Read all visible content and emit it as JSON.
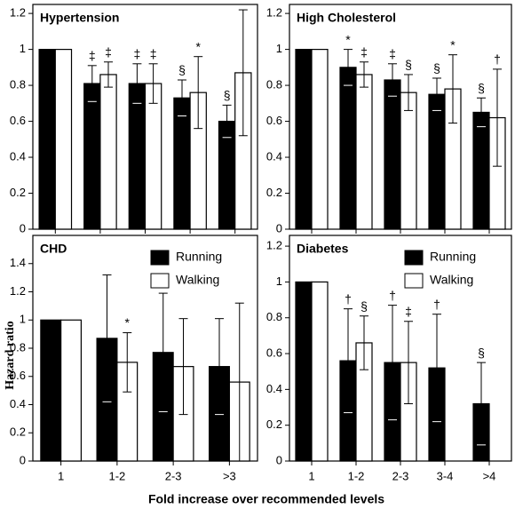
{
  "ylabel": "Hazard ratio",
  "xlabel": "Fold increase over recommended levels",
  "chart_data": [
    {
      "type": "bar",
      "title": "Hypertension",
      "categories": [
        null,
        null,
        null,
        null,
        null
      ],
      "ylim": [
        0,
        1.25
      ],
      "yticks": [
        0,
        0.2,
        0.4,
        0.6,
        0.8,
        1,
        1.2
      ],
      "series": [
        {
          "name": null,
          "color": "#000000",
          "values": [
            1,
            0.81,
            0.81,
            0.73,
            0.6
          ],
          "errors": [
            null,
            0.1,
            0.11,
            0.1,
            0.09
          ],
          "annotations": [
            null,
            "‡",
            "‡",
            "§",
            "§"
          ]
        },
        {
          "name": null,
          "color": "#ffffff",
          "values": [
            1,
            0.86,
            0.81,
            0.76,
            0.87
          ],
          "errors": [
            null,
            0.07,
            0.11,
            0.2,
            0.35
          ],
          "annotations": [
            null,
            "‡",
            "‡",
            "*",
            null
          ]
        }
      ]
    },
    {
      "type": "bar",
      "title": "High Cholesterol",
      "categories": [
        null,
        null,
        null,
        null,
        null
      ],
      "ylim": [
        0,
        1.25
      ],
      "yticks": [
        0,
        0.2,
        0.4,
        0.6,
        0.8,
        1,
        1.2
      ],
      "series": [
        {
          "name": null,
          "color": "#000000",
          "values": [
            1,
            0.9,
            0.83,
            0.75,
            0.65
          ],
          "errors": [
            null,
            0.1,
            0.09,
            0.09,
            0.08
          ],
          "annotations": [
            null,
            "*",
            "‡",
            "§",
            "§"
          ]
        },
        {
          "name": null,
          "color": "#ffffff",
          "values": [
            1,
            0.86,
            0.76,
            0.78,
            0.62
          ],
          "errors": [
            null,
            0.07,
            0.1,
            0.19,
            0.27
          ],
          "annotations": [
            null,
            "‡",
            "§",
            "*",
            "†"
          ]
        }
      ]
    },
    {
      "type": "bar",
      "title": "CHD",
      "categories": [
        "1",
        "1-2",
        "2-3",
        ">3"
      ],
      "ylim": [
        0,
        1.6
      ],
      "yticks": [
        0,
        0.2,
        0.4,
        0.6,
        0.8,
        1,
        1.2,
        1.4
      ],
      "legend": "upper right",
      "series": [
        {
          "name": "Running",
          "color": "#000000",
          "values": [
            1,
            0.87,
            0.77,
            0.67
          ],
          "errors": [
            null,
            0.45,
            0.42,
            0.34
          ],
          "annotations": [
            null,
            null,
            null,
            null
          ]
        },
        {
          "name": "Walking",
          "color": "#ffffff",
          "values": [
            1,
            0.7,
            0.67,
            0.56
          ],
          "errors": [
            null,
            0.21,
            0.34,
            0.56
          ],
          "annotations": [
            null,
            "*",
            null,
            null
          ]
        }
      ]
    },
    {
      "type": "bar",
      "title": "Diabetes",
      "categories": [
        "1",
        "1-2",
        "2-3",
        "3-4",
        ">4"
      ],
      "ylim": [
        0,
        1.26
      ],
      "yticks": [
        0,
        0.2,
        0.4,
        0.6,
        0.8,
        1,
        1.2
      ],
      "legend": "upper right",
      "series": [
        {
          "name": "Running",
          "color": "#000000",
          "values": [
            1,
            0.56,
            0.55,
            0.52,
            0.32
          ],
          "errors": [
            null,
            0.29,
            0.32,
            0.3,
            0.23
          ],
          "annotations": [
            null,
            "†",
            "†",
            "†",
            "§"
          ]
        },
        {
          "name": "Walking",
          "color": "#ffffff",
          "values": [
            1,
            0.66,
            0.55,
            null,
            null
          ],
          "errors": [
            null,
            0.15,
            0.23,
            null,
            null
          ],
          "annotations": [
            null,
            "§",
            "‡",
            null,
            null
          ]
        }
      ]
    }
  ]
}
